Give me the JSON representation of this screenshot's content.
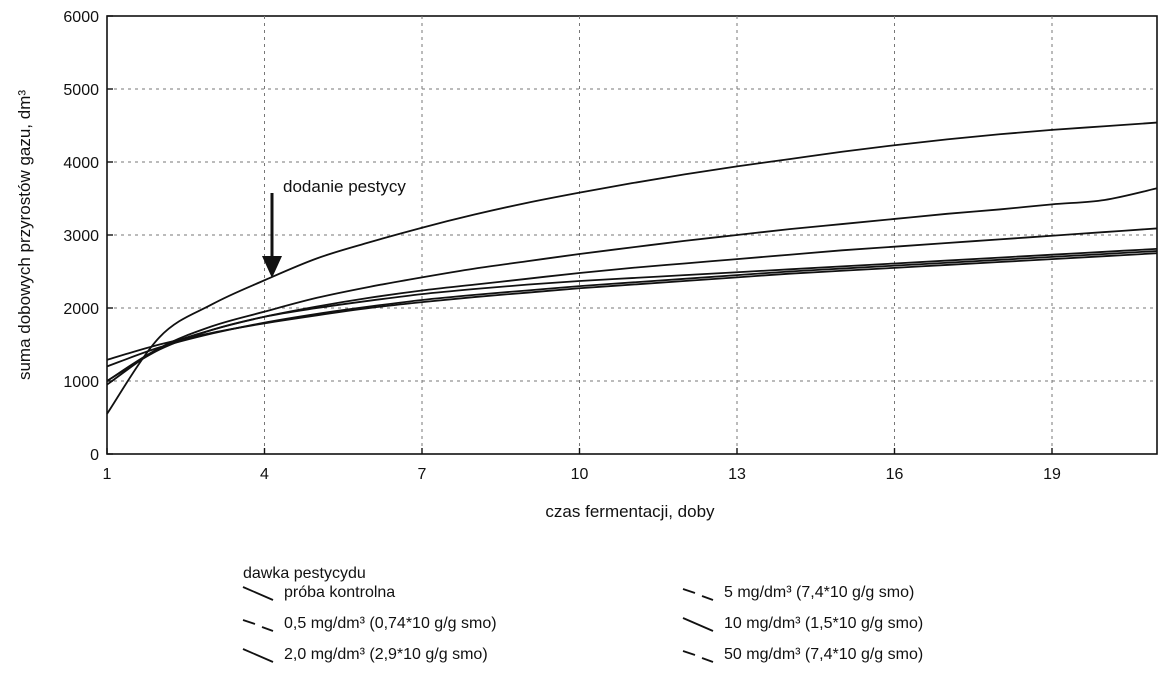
{
  "chart_data": {
    "type": "line",
    "title": "",
    "xlabel": "czas fermentacji, doby",
    "ylabel": "suma dobowych przyrostów gazu, dm³",
    "xlim": [
      1,
      21
    ],
    "ylim": [
      0,
      6000
    ],
    "xticks": [
      1,
      4,
      7,
      10,
      13,
      16,
      19
    ],
    "yticks": [
      0,
      1000,
      2000,
      3000,
      4000,
      5000,
      6000
    ],
    "grid": true,
    "legend_position": "bottom",
    "legend_title": "dawka pestycydu",
    "annotation": {
      "text": "dodanie pestycy",
      "x": 4,
      "y": 2400
    },
    "x": [
      1,
      2,
      3,
      4,
      5,
      6,
      7,
      8,
      9,
      10,
      11,
      12,
      13,
      14,
      15,
      16,
      17,
      18,
      19,
      20,
      21
    ],
    "series": [
      {
        "name": "próba kontrolna",
        "line_style": "solid",
        "values": [
          550,
          1600,
          2050,
          2380,
          2680,
          2900,
          3100,
          3280,
          3440,
          3580,
          3710,
          3830,
          3940,
          4040,
          4140,
          4230,
          4310,
          4380,
          4440,
          4490,
          4540
        ]
      },
      {
        "name": "0,5 mg/dm³ (0,74*10 g/g smo)",
        "line_style": "dashed",
        "values": [
          950,
          1450,
          1750,
          1950,
          2140,
          2290,
          2420,
          2540,
          2640,
          2740,
          2830,
          2920,
          3000,
          3080,
          3150,
          3220,
          3290,
          3350,
          3420,
          3480,
          3640
        ]
      },
      {
        "name": "2,0 mg/dm³ (2,9*10 g/g smo)",
        "line_style": "solid",
        "values": [
          1000,
          1450,
          1700,
          1880,
          2020,
          2140,
          2240,
          2320,
          2400,
          2480,
          2550,
          2610,
          2670,
          2730,
          2790,
          2840,
          2890,
          2940,
          2990,
          3040,
          3090
        ]
      },
      {
        "name": "5 mg/dm³ (7,4*10 g/g smo)",
        "line_style": "dashed",
        "values": [
          1200,
          1460,
          1650,
          1800,
          1920,
          2020,
          2110,
          2180,
          2240,
          2300,
          2350,
          2400,
          2450,
          2500,
          2540,
          2580,
          2620,
          2660,
          2700,
          2740,
          2780
        ]
      },
      {
        "name": "10 mg/dm³ (1,5*10 g/g smo)",
        "line_style": "solid",
        "values": [
          1290,
          1500,
          1660,
          1790,
          1900,
          2000,
          2080,
          2150,
          2210,
          2270,
          2320,
          2370,
          2420,
          2470,
          2510,
          2550,
          2590,
          2630,
          2670,
          2710,
          2750
        ]
      },
      {
        "name": "50 mg/dm³ (7,4*10 g/g smo)",
        "line_style": "dashed",
        "values": [
          1000,
          1430,
          1700,
          1880,
          2000,
          2100,
          2190,
          2260,
          2320,
          2370,
          2410,
          2450,
          2490,
          2530,
          2570,
          2610,
          2650,
          2690,
          2730,
          2770,
          2810
        ]
      }
    ]
  }
}
